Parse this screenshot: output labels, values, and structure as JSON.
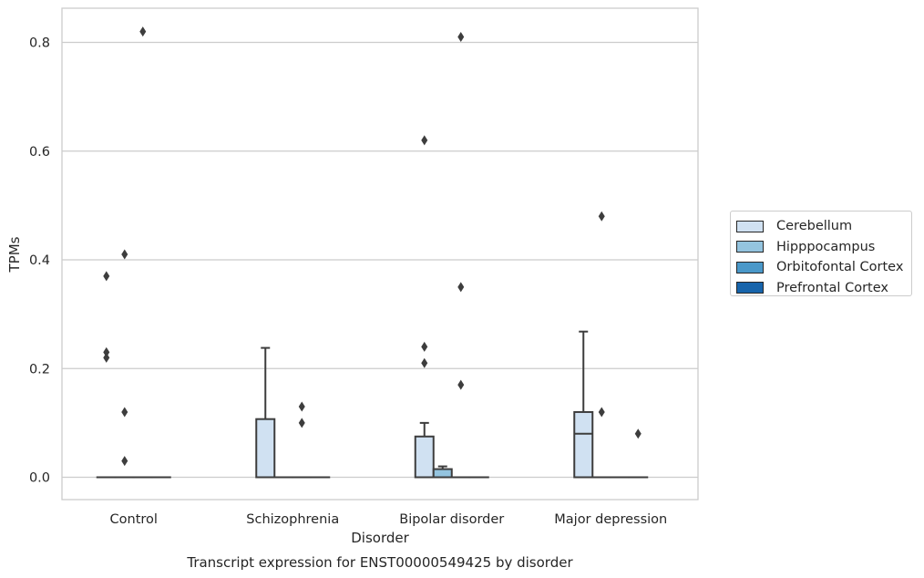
{
  "chart_data": {
    "type": "box",
    "title": "Transcript expression for ENST00000549425 by disorder",
    "xlabel": "Disorder",
    "ylabel": "TPMs",
    "ylim": [
      -0.04,
      0.86
    ],
    "yticks": [
      0.0,
      0.2,
      0.4,
      0.6,
      0.8
    ],
    "ytick_labels": [
      "0.0",
      "0.2",
      "0.4",
      "0.6",
      "0.8"
    ],
    "grid": "horizontal",
    "legend_position": "outside-right",
    "categories": [
      "Control",
      "Schizophrenia",
      "Bipolar disorder",
      "Major depression"
    ],
    "series": [
      {
        "name": "Cerebellum",
        "color": "#d0e1f2",
        "boxes": [
          {
            "min": 0,
            "q1": 0,
            "median": 0,
            "q3": 0,
            "max": 0,
            "outliers": [
              0.37,
              0.23,
              0.22
            ]
          },
          {
            "min": 0,
            "q1": 0,
            "median": 0,
            "q3": 0.107,
            "max": 0.238,
            "outliers": []
          },
          {
            "min": 0,
            "q1": 0,
            "median": 0,
            "q3": 0.075,
            "max": 0.1,
            "outliers": [
              0.62,
              0.24,
              0.21
            ]
          },
          {
            "min": 0,
            "q1": 0,
            "median": 0.08,
            "q3": 0.12,
            "max": 0.268,
            "outliers": []
          }
        ]
      },
      {
        "name": "Hipppocampus",
        "color": "#94c4df",
        "boxes": [
          {
            "min": 0,
            "q1": 0,
            "median": 0,
            "q3": 0,
            "max": 0,
            "outliers": [
              0.41,
              0.12,
              0.03
            ]
          },
          {
            "min": 0,
            "q1": 0,
            "median": 0,
            "q3": 0,
            "max": 0,
            "outliers": []
          },
          {
            "min": 0,
            "q1": 0,
            "median": 0,
            "q3": 0.015,
            "max": 0.02,
            "outliers": []
          },
          {
            "min": 0,
            "q1": 0,
            "median": 0,
            "q3": 0,
            "max": 0,
            "outliers": [
              0.48,
              0.12
            ]
          }
        ]
      },
      {
        "name": "Orbitofontal Cortex",
        "color": "#4a98c9",
        "boxes": [
          {
            "min": 0,
            "q1": 0,
            "median": 0,
            "q3": 0,
            "max": 0,
            "outliers": [
              0.82
            ]
          },
          {
            "min": 0,
            "q1": 0,
            "median": 0,
            "q3": 0,
            "max": 0,
            "outliers": [
              0.13,
              0.1
            ]
          },
          {
            "min": 0,
            "q1": 0,
            "median": 0,
            "q3": 0,
            "max": 0,
            "outliers": [
              0.81,
              0.35,
              0.17
            ]
          },
          {
            "min": 0,
            "q1": 0,
            "median": 0,
            "q3": 0,
            "max": 0,
            "outliers": []
          }
        ]
      },
      {
        "name": "Prefrontal Cortex",
        "color": "#1764ab",
        "boxes": [
          {
            "min": 0,
            "q1": 0,
            "median": 0,
            "q3": 0,
            "max": 0,
            "outliers": []
          },
          {
            "min": 0,
            "q1": 0,
            "median": 0,
            "q3": 0,
            "max": 0,
            "outliers": []
          },
          {
            "min": 0,
            "q1": 0,
            "median": 0,
            "q3": 0,
            "max": 0,
            "outliers": []
          },
          {
            "min": 0,
            "q1": 0,
            "median": 0,
            "q3": 0,
            "max": 0,
            "outliers": [
              0.08
            ]
          }
        ]
      }
    ]
  }
}
